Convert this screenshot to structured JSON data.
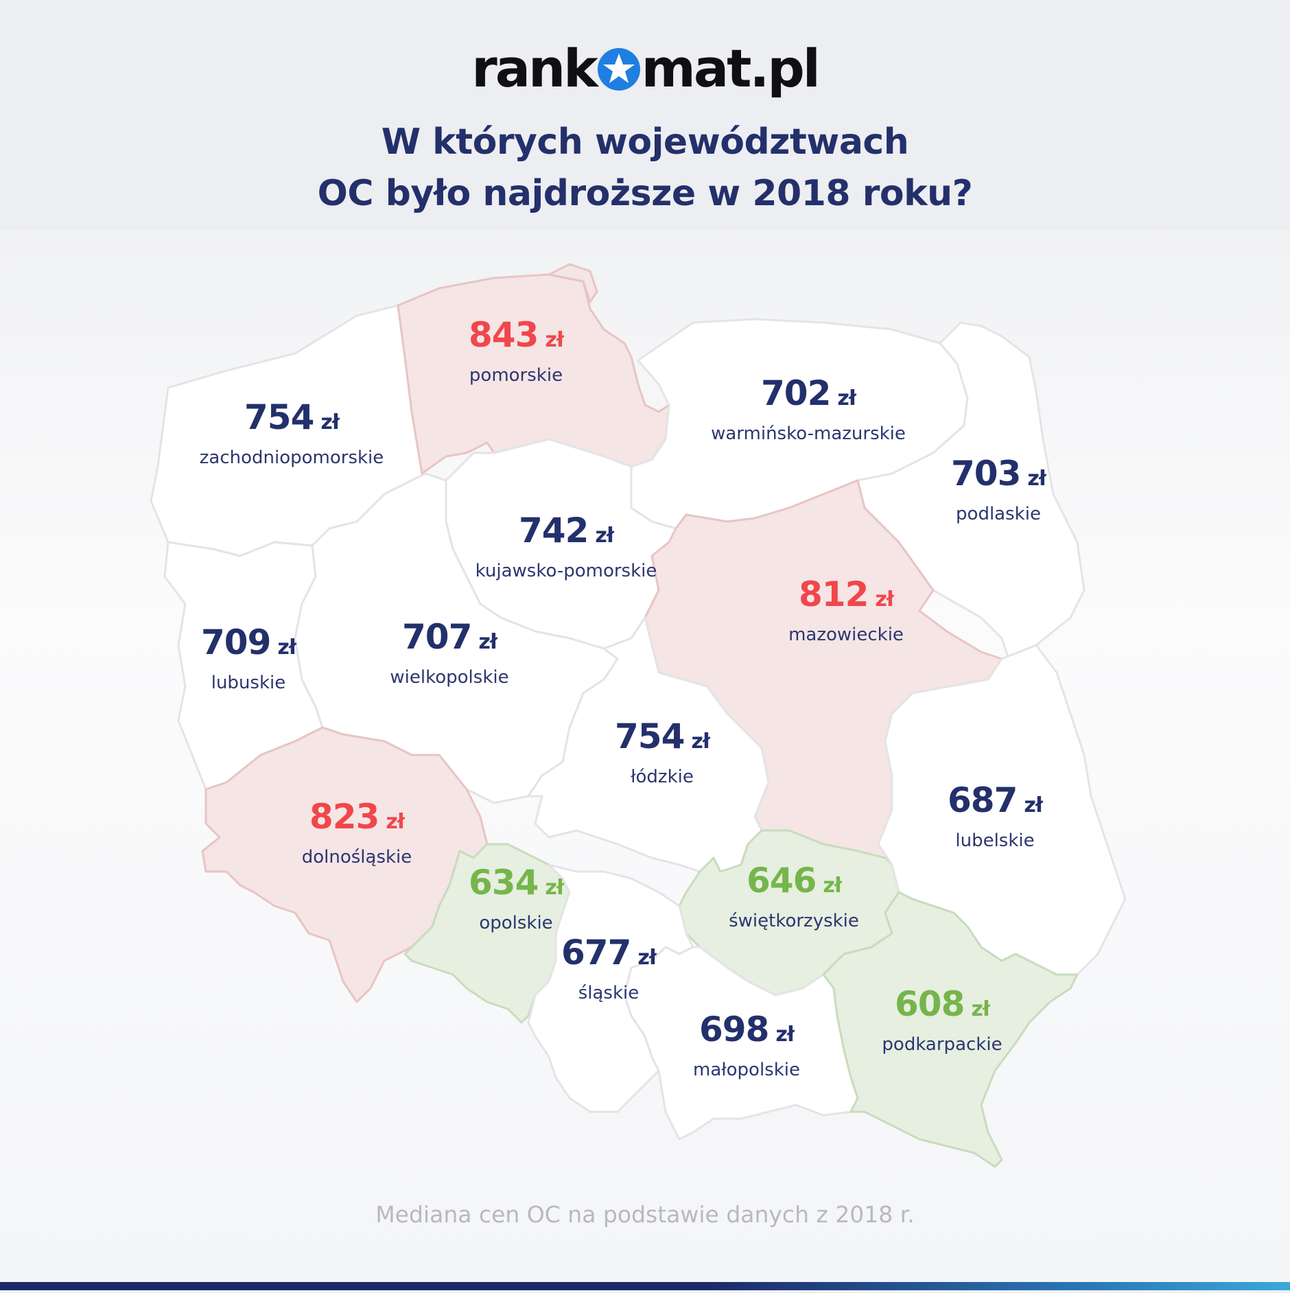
{
  "brand": {
    "logo_left": "rank",
    "logo_right": "mat.pl"
  },
  "title": {
    "line1": "W których województwach",
    "line2": "OC było najdroższe w 2018 roku?"
  },
  "currency": "zł",
  "colors": {
    "navy": "#23306b",
    "red": "#f0474b",
    "green": "#76b54b"
  },
  "regions": [
    {
      "name": "pomorskie",
      "price": "843",
      "category": "high"
    },
    {
      "name": "zachodniopomorskie",
      "price": "754",
      "category": "mid"
    },
    {
      "name": "warmińsko-mazurskie",
      "price": "702",
      "category": "mid"
    },
    {
      "name": "podlaskie",
      "price": "703",
      "category": "mid"
    },
    {
      "name": "kujawsko-pomorskie",
      "price": "742",
      "category": "mid"
    },
    {
      "name": "mazowieckie",
      "price": "812",
      "category": "high"
    },
    {
      "name": "lubuskie",
      "price": "709",
      "category": "mid"
    },
    {
      "name": "wielkopolskie",
      "price": "707",
      "category": "mid"
    },
    {
      "name": "łódzkie",
      "price": "754",
      "category": "mid"
    },
    {
      "name": "dolnośląskie",
      "price": "823",
      "category": "high"
    },
    {
      "name": "lubelskie",
      "price": "687",
      "category": "mid"
    },
    {
      "name": "opolskie",
      "price": "634",
      "category": "low"
    },
    {
      "name": "świętkorzyskie",
      "price": "646",
      "category": "low"
    },
    {
      "name": "śląskie",
      "price": "677",
      "category": "mid"
    },
    {
      "name": "małopolskie",
      "price": "698",
      "category": "mid"
    },
    {
      "name": "podkarpackie",
      "price": "608",
      "category": "low"
    }
  ],
  "footnote": "Mediana cen OC na podstawie danych z 2018 r."
}
